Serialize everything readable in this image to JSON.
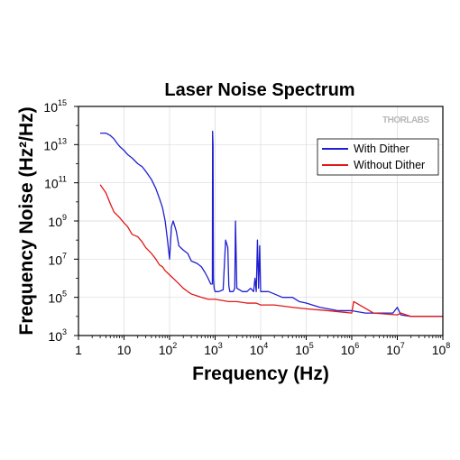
{
  "chart_data": {
    "type": "line",
    "title": "Laser Noise Spectrum",
    "xlabel": "Frequency (Hz)",
    "ylabel": "Frequency Noise (Hz²/Hz)",
    "xscale": "log",
    "yscale": "log",
    "xlim": [
      1,
      100000000
    ],
    "ylim": [
      1000,
      1000000000000000
    ],
    "x_ticks": [
      {
        "base": "1",
        "exp": ""
      },
      {
        "base": "10",
        "exp": ""
      },
      {
        "base": "10",
        "exp": "2"
      },
      {
        "base": "10",
        "exp": "3"
      },
      {
        "base": "10",
        "exp": "4"
      },
      {
        "base": "10",
        "exp": "5"
      },
      {
        "base": "10",
        "exp": "6"
      },
      {
        "base": "10",
        "exp": "7"
      },
      {
        "base": "10",
        "exp": "8"
      }
    ],
    "y_ticks": [
      {
        "base": "10",
        "exp": "3"
      },
      {
        "base": "10",
        "exp": "5"
      },
      {
        "base": "10",
        "exp": "7"
      },
      {
        "base": "10",
        "exp": "9"
      },
      {
        "base": "10",
        "exp": "11"
      },
      {
        "base": "10",
        "exp": "13"
      },
      {
        "base": "10",
        "exp": "15"
      }
    ],
    "grid": true,
    "legend_position": "top-right",
    "watermark": "THORLABS",
    "series": [
      {
        "name": "With Dither",
        "color": "#1f1fd0",
        "x": [
          3,
          4,
          5,
          6,
          7,
          8,
          10,
          12,
          15,
          20,
          25,
          30,
          40,
          50,
          60,
          70,
          80,
          90,
          100,
          110,
          120,
          140,
          160,
          200,
          250,
          300,
          400,
          500,
          600,
          700,
          800,
          870,
          880,
          900,
          910,
          920,
          950,
          1000,
          1200,
          1500,
          1700,
          1900,
          2000,
          2100,
          2500,
          2700,
          2800,
          3000,
          4000,
          5000,
          6000,
          7000,
          7500,
          8000,
          8500,
          9000,
          9500,
          10000,
          15000,
          20000,
          30000,
          50000,
          70000,
          100000,
          200000,
          300000,
          500000,
          700000,
          1000000,
          2000000,
          5000000,
          8000000,
          10000000,
          12000000,
          20000000,
          50000000,
          100000000
        ],
        "y": [
          40000000000000.0,
          40000000000000.0,
          30000000000000.0,
          20000000000000.0,
          12000000000000.0,
          8000000000000.0,
          5000000000000.0,
          3000000000000.0,
          2000000000000.0,
          1000000000000.0,
          700000000000.0,
          400000000000.0,
          150000000000.0,
          50000000000.0,
          15000000000.0,
          5000000000.0,
          1000000000.0,
          100000000.0,
          10000000.0,
          500000000.0,
          1000000000.0,
          300000000.0,
          50000000.0,
          30000000.0,
          20000000.0,
          8000000.0,
          6000000.0,
          4000000.0,
          2000000.0,
          1000000.0,
          500000.0,
          500000.0,
          50000000000000.0,
          10000000000000.0,
          1000000000.0,
          1000000.0,
          300000.0,
          200000.0,
          200000.0,
          250000.0,
          100000000.0,
          40000000.0,
          400000.0,
          200000.0,
          200000.0,
          300000.0,
          1000000000.0,
          300000.0,
          200000.0,
          200000.0,
          300000.0,
          200000.0,
          1000000.0,
          200000.0,
          100000000.0,
          300000.0,
          50000000.0,
          200000.0,
          200000.0,
          150000.0,
          100000.0,
          100000.0,
          60000.0,
          50000.0,
          30000.0,
          25000.0,
          20000.0,
          20000.0,
          20000.0,
          15000.0,
          15000.0,
          15000.0,
          30000.0,
          12000.0,
          10000.0,
          10000.0,
          10000.0
        ]
      },
      {
        "name": "Without Dither",
        "color": "#e01818",
        "x": [
          3,
          4,
          5,
          6,
          8,
          10,
          12,
          15,
          20,
          25,
          30,
          40,
          50,
          60,
          70,
          80,
          100,
          120,
          150,
          200,
          250,
          300,
          400,
          500,
          700,
          1000,
          2000,
          3000,
          5000,
          8000,
          10000,
          20000,
          50000,
          100000,
          300000,
          1000000,
          1100000,
          3000000,
          10000000,
          12000000,
          20000000,
          100000000
        ],
        "y": [
          80000000000.0,
          30000000000.0,
          8000000000.0,
          3000000000.0,
          1500000000.0,
          800000000.0,
          500000000.0,
          200000000.0,
          150000000.0,
          80000000.0,
          40000000.0,
          20000000.0,
          10000000.0,
          5000000.0,
          4000000.0,
          2500000.0,
          1500000.0,
          1000000.0,
          600000.0,
          300000.0,
          200000.0,
          150000.0,
          120000.0,
          100000.0,
          80000.0,
          80000.0,
          60000.0,
          60000.0,
          50000.0,
          50000.0,
          40000.0,
          40000.0,
          30000.0,
          25000.0,
          20000.0,
          15000.0,
          60000.0,
          15000.0,
          12000.0,
          15000.0,
          10000.0,
          10000.0
        ]
      }
    ]
  }
}
